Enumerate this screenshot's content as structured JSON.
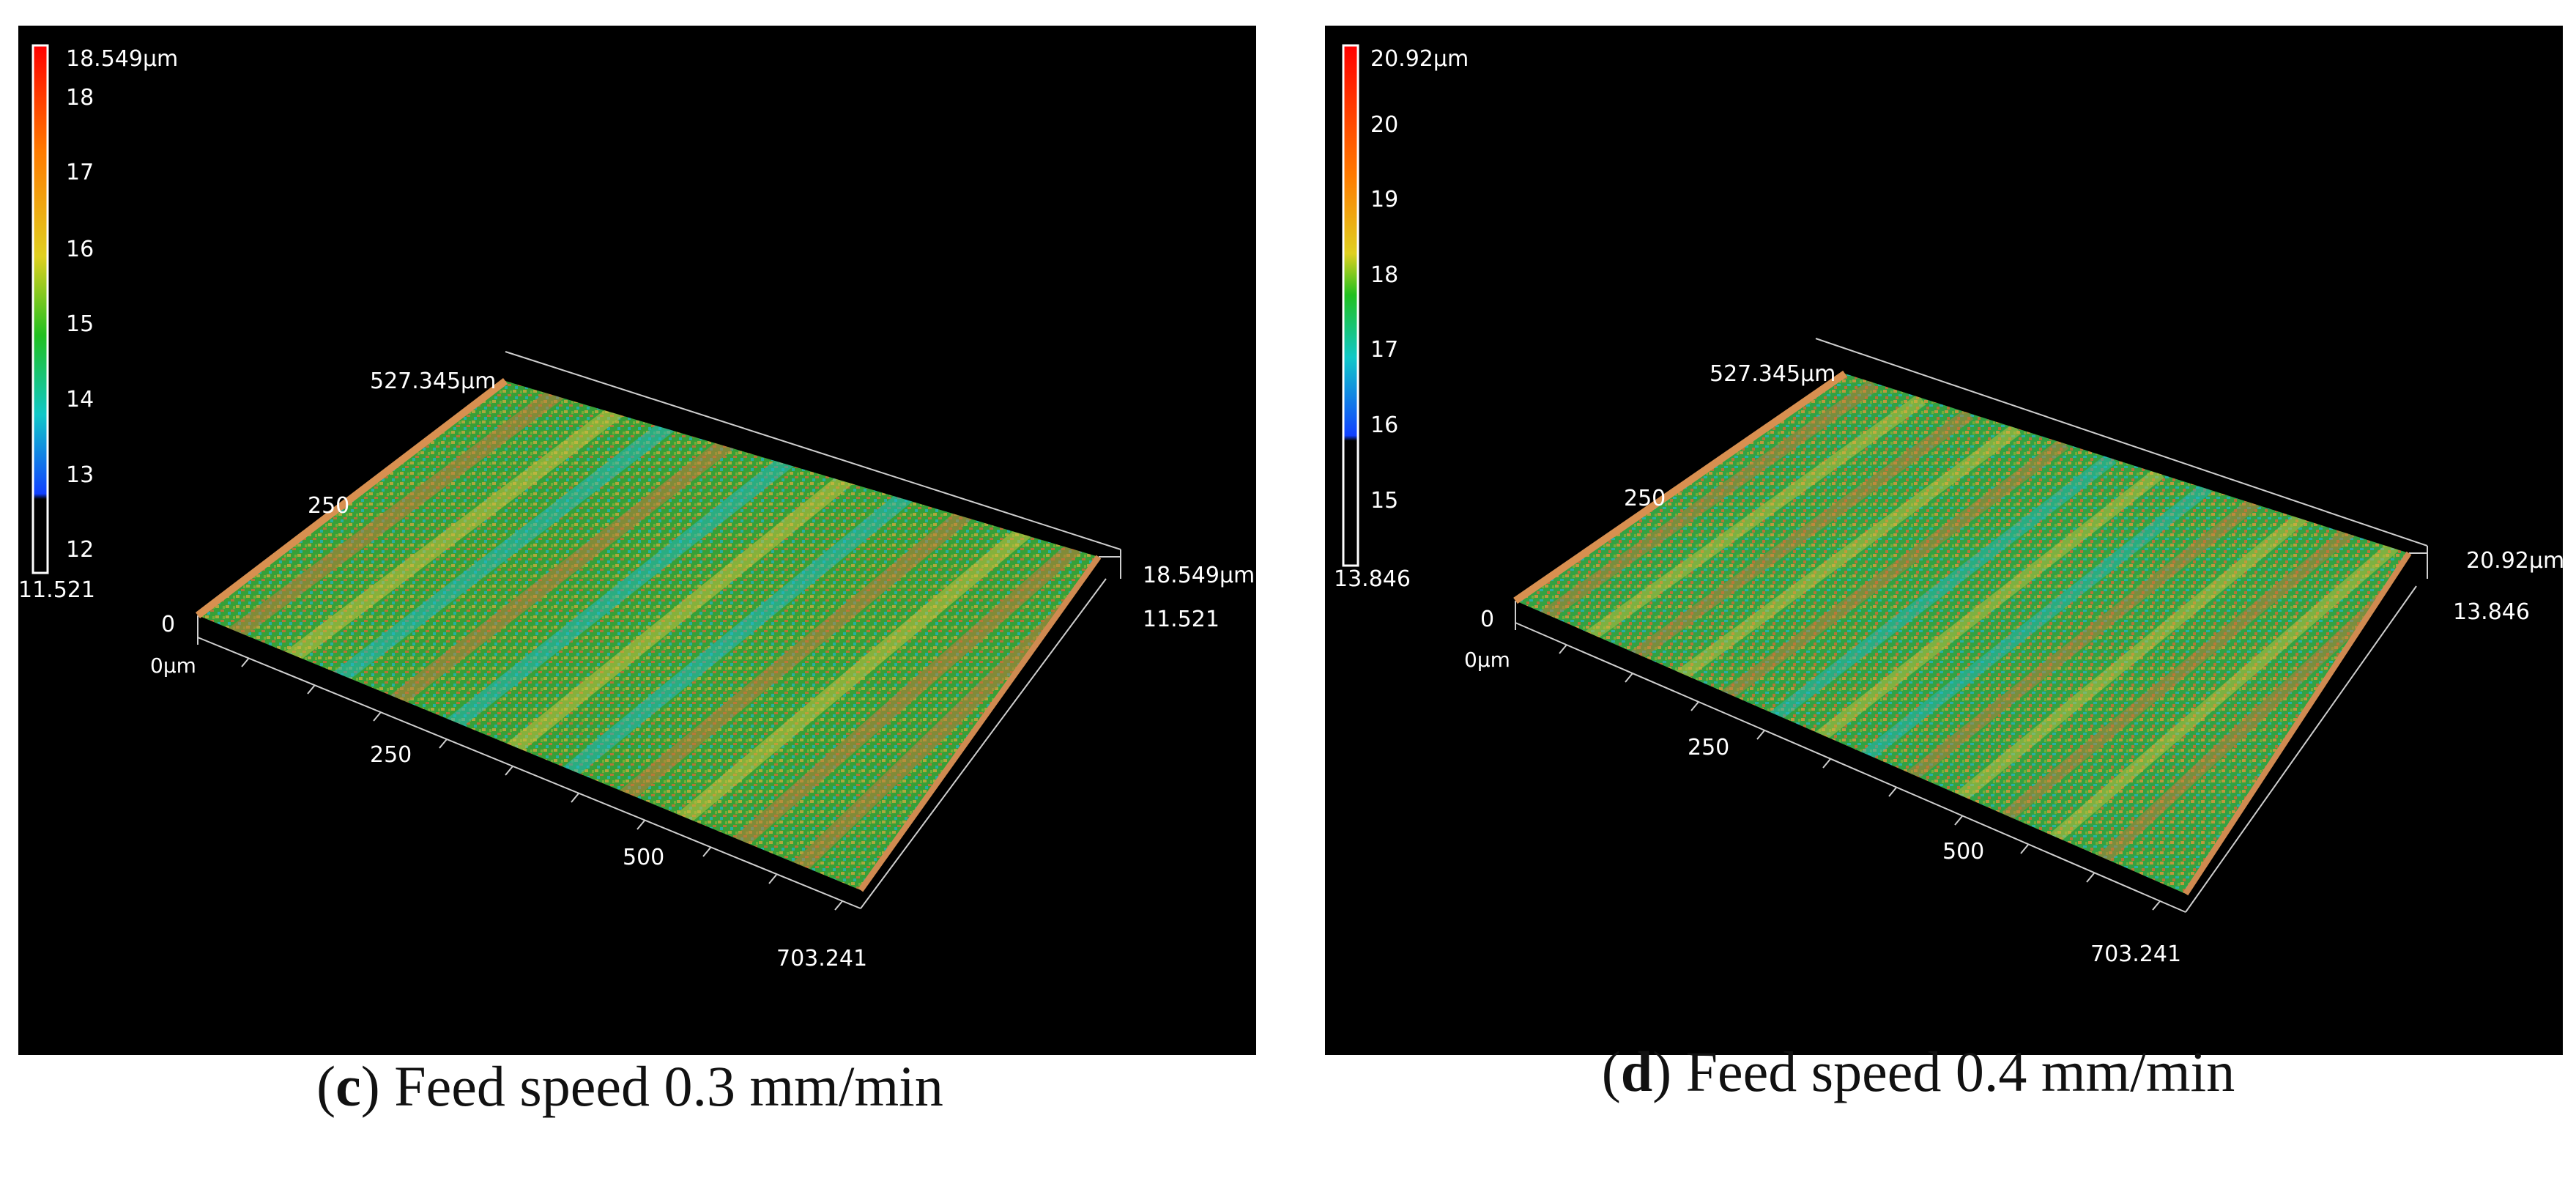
{
  "panels": [
    {
      "id": "c",
      "colorbar": {
        "max_label": "18.549µm",
        "ticks": [
          "18",
          "17",
          "16",
          "15",
          "14",
          "13",
          "12"
        ],
        "min_label": "11.521"
      },
      "axes": {
        "y_max_label": "527.345µm",
        "y_mid_label": "250",
        "origin_zero": "0",
        "origin_label": "0µm",
        "x_tick_1": "250",
        "x_tick_2": "500",
        "x_max_label": "703.241",
        "z_max_label": "18.549µm",
        "z_min_label": "11.521"
      },
      "caption": {
        "letter": "c",
        "text": "Feed speed 0.3 mm/min"
      }
    },
    {
      "id": "d",
      "colorbar": {
        "max_label": "20.92µm",
        "ticks": [
          "20",
          "19",
          "18",
          "17",
          "16",
          "15"
        ],
        "min_label": "13.846"
      },
      "axes": {
        "y_max_label": "527.345µm",
        "y_mid_label": "250",
        "origin_zero": "0",
        "origin_label": "0µm",
        "x_tick_1": "250",
        "x_tick_2": "500",
        "x_max_label": "703.241",
        "z_max_label": "20.92µm",
        "z_min_label": "13.846"
      },
      "caption": {
        "letter": "d",
        "text": "Feed speed 0.4 mm/min"
      }
    }
  ],
  "colors": {
    "background": "#000000",
    "axis_line": "#cfcfcf",
    "colormap": [
      "#ff0000",
      "#ff8a00",
      "#e0d020",
      "#20c020",
      "#10c8c8",
      "#1040ff",
      "#ffffff"
    ],
    "surface_high": "#c8783a",
    "surface_mid": "#3fb23f",
    "surface_low": "#22b8b0"
  }
}
